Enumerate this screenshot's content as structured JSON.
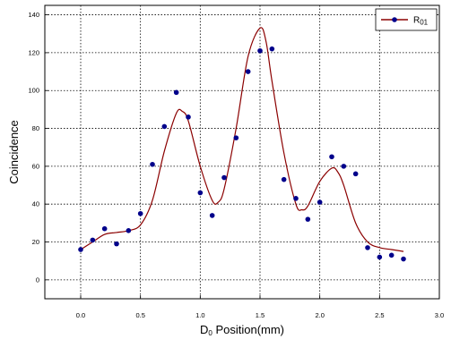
{
  "chart_data": {
    "type": "scatter",
    "xlabel": {
      "main": "D",
      "sub": "0",
      "rest": " Position(mm)"
    },
    "ylabel": "Coincidence",
    "xlim": [
      -0.3,
      3.0
    ],
    "ylim": [
      -10,
      145
    ],
    "xticks": [
      0.0,
      0.5,
      1.0,
      1.5,
      2.0,
      2.5,
      3.0
    ],
    "xtick_labels": [
      "0.0",
      "0.5",
      "1.0",
      "1.5",
      "2.0",
      "2.5",
      "3.0"
    ],
    "yticks": [
      0,
      20,
      40,
      60,
      80,
      100,
      120,
      140
    ],
    "ytick_labels": [
      "0",
      "20",
      "40",
      "60",
      "80",
      "100",
      "120",
      "140"
    ],
    "grid": true,
    "legend": {
      "position": "top-right",
      "main": "R",
      "sub": "01"
    },
    "series": [
      {
        "name": "R01",
        "marker_color": "#00008b",
        "line_color": "#8b0000",
        "points": [
          {
            "x": 0.0,
            "y": 16
          },
          {
            "x": 0.1,
            "y": 21
          },
          {
            "x": 0.2,
            "y": 27
          },
          {
            "x": 0.3,
            "y": 19
          },
          {
            "x": 0.4,
            "y": 26
          },
          {
            "x": 0.5,
            "y": 35
          },
          {
            "x": 0.6,
            "y": 61
          },
          {
            "x": 0.7,
            "y": 81
          },
          {
            "x": 0.8,
            "y": 99
          },
          {
            "x": 0.9,
            "y": 86
          },
          {
            "x": 1.0,
            "y": 46
          },
          {
            "x": 1.1,
            "y": 34
          },
          {
            "x": 1.2,
            "y": 54
          },
          {
            "x": 1.3,
            "y": 75
          },
          {
            "x": 1.4,
            "y": 110
          },
          {
            "x": 1.5,
            "y": 121
          },
          {
            "x": 1.6,
            "y": 122
          },
          {
            "x": 1.7,
            "y": 53
          },
          {
            "x": 1.8,
            "y": 43
          },
          {
            "x": 1.9,
            "y": 32
          },
          {
            "x": 2.0,
            "y": 41
          },
          {
            "x": 2.1,
            "y": 65
          },
          {
            "x": 2.2,
            "y": 60
          },
          {
            "x": 2.3,
            "y": 56
          },
          {
            "x": 2.4,
            "y": 17
          },
          {
            "x": 2.5,
            "y": 12
          },
          {
            "x": 2.6,
            "y": 13
          },
          {
            "x": 2.7,
            "y": 11
          }
        ],
        "fit_curve": [
          {
            "x": 0.0,
            "y": 16
          },
          {
            "x": 0.1,
            "y": 20
          },
          {
            "x": 0.2,
            "y": 24
          },
          {
            "x": 0.3,
            "y": 25
          },
          {
            "x": 0.4,
            "y": 26
          },
          {
            "x": 0.5,
            "y": 29
          },
          {
            "x": 0.6,
            "y": 42
          },
          {
            "x": 0.7,
            "y": 68
          },
          {
            "x": 0.8,
            "y": 88
          },
          {
            "x": 0.85,
            "y": 89
          },
          {
            "x": 0.9,
            "y": 84
          },
          {
            "x": 1.0,
            "y": 60
          },
          {
            "x": 1.1,
            "y": 42
          },
          {
            "x": 1.15,
            "y": 41
          },
          {
            "x": 1.2,
            "y": 48
          },
          {
            "x": 1.3,
            "y": 80
          },
          {
            "x": 1.4,
            "y": 118
          },
          {
            "x": 1.5,
            "y": 133
          },
          {
            "x": 1.55,
            "y": 126
          },
          {
            "x": 1.6,
            "y": 105
          },
          {
            "x": 1.7,
            "y": 67
          },
          {
            "x": 1.8,
            "y": 40
          },
          {
            "x": 1.85,
            "y": 37
          },
          {
            "x": 1.9,
            "y": 39
          },
          {
            "x": 2.0,
            "y": 52
          },
          {
            "x": 2.1,
            "y": 59
          },
          {
            "x": 2.15,
            "y": 57
          },
          {
            "x": 2.2,
            "y": 50
          },
          {
            "x": 2.3,
            "y": 30
          },
          {
            "x": 2.4,
            "y": 20
          },
          {
            "x": 2.5,
            "y": 17
          },
          {
            "x": 2.6,
            "y": 16
          },
          {
            "x": 2.7,
            "y": 15
          }
        ]
      }
    ]
  }
}
